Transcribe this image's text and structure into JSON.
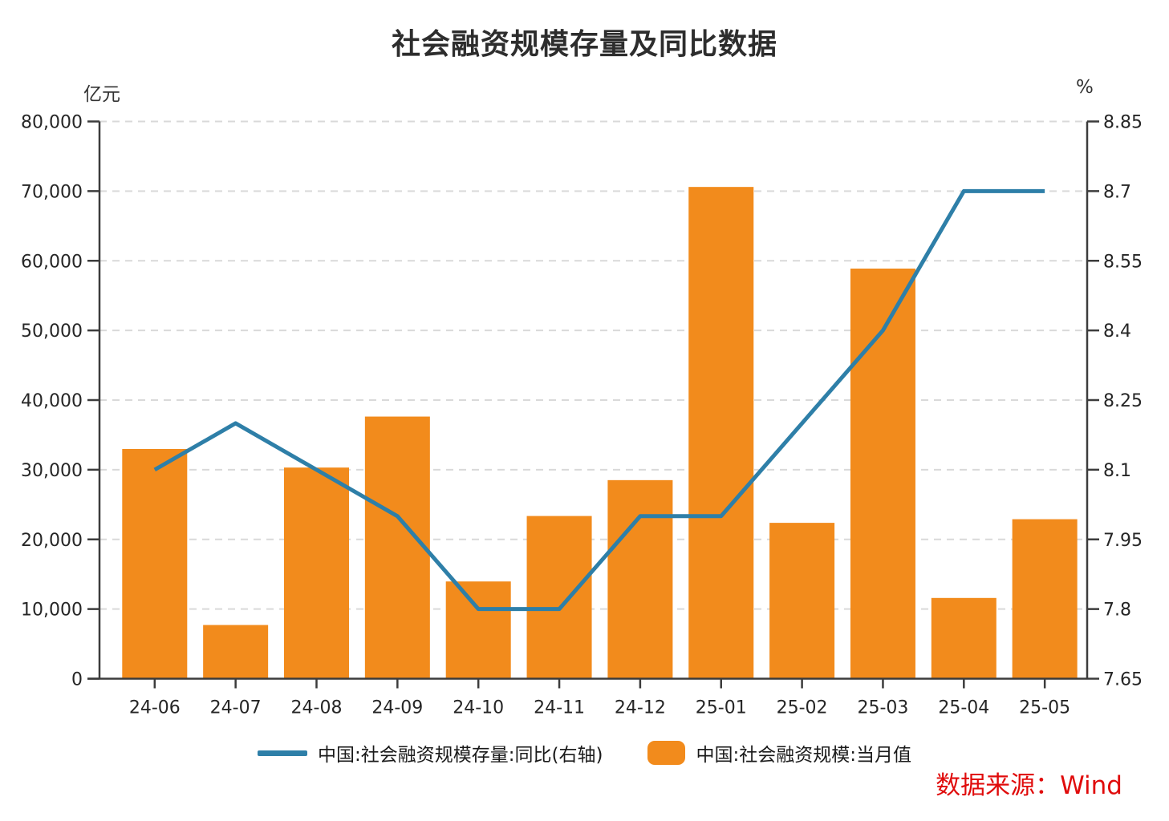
{
  "title": "社会融资规模存量及同比数据",
  "source": "数据来源：Wind",
  "colors": {
    "bar": "#f28b1c",
    "line": "#2e7fa8",
    "grid": "#d9d9d9",
    "axis": "#3c3c3c",
    "source_text": "#e00b0b"
  },
  "legend": [
    {
      "label": "中国:社会融资规模存量:同比(右轴)",
      "swatch": "line",
      "color": "#2e7fa8"
    },
    {
      "label": "中国:社会融资规模:当月值",
      "swatch": "bar",
      "color": "#f28b1c"
    }
  ],
  "chart_data": {
    "type": "combo",
    "categories": [
      "24-06",
      "24-07",
      "24-08",
      "24-09",
      "24-10",
      "24-11",
      "24-12",
      "25-01",
      "25-02",
      "25-03",
      "25-04",
      "25-05"
    ],
    "series": [
      {
        "name": "中国:社会融资规模:当月值",
        "type": "bar",
        "axis": "left",
        "color": "#f28b1c",
        "values": [
          32982,
          7708,
          30311,
          37634,
          13958,
          23357,
          28507,
          70600,
          22375,
          58879,
          11591,
          22897
        ]
      },
      {
        "name": "中国:社会融资规模存量:同比(右轴)",
        "type": "line",
        "axis": "right",
        "color": "#2e7fa8",
        "values": [
          8.1,
          8.2,
          8.1,
          8.0,
          7.8,
          7.8,
          8.0,
          8.0,
          8.2,
          8.4,
          8.7,
          8.7
        ]
      }
    ],
    "left_axis": {
      "unit": "亿元",
      "min": 0,
      "max": 80000,
      "tick_step": 10000,
      "tick_labels": [
        "0",
        "10,000",
        "20,000",
        "30,000",
        "40,000",
        "50,000",
        "60,000",
        "70,000",
        "80,000"
      ]
    },
    "right_axis": {
      "unit": "%",
      "min": 7.65,
      "max": 8.85,
      "tick_step": 0.15,
      "tick_labels": [
        "7.65",
        "7.8",
        "7.95",
        "8.1",
        "8.25",
        "8.4",
        "8.55",
        "8.7",
        "8.85"
      ]
    },
    "grid": "horizontal-dashed",
    "legend_position": "bottom"
  }
}
